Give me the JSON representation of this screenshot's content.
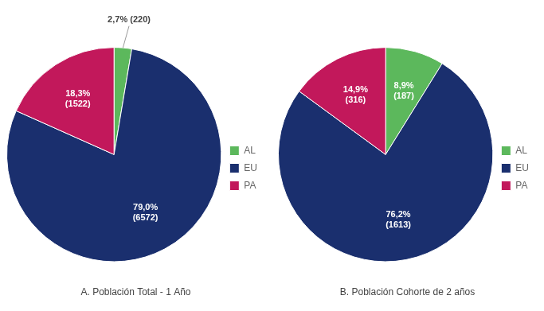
{
  "chart_data": [
    {
      "type": "pie",
      "title": "A. Población Total - 1 Año",
      "categories": [
        "AL",
        "EU",
        "PA"
      ],
      "values": [
        220,
        6572,
        1522
      ],
      "value_labels": [
        "2,7% (220)",
        "79,0%\n(6572)",
        "18,3%\n(1522)"
      ],
      "colors": [
        "#5cb85c",
        "#1a2f6e",
        "#c2185b"
      ],
      "data_labels": true,
      "legend": "right"
    },
    {
      "type": "pie",
      "title": "B. Población Cohorte de 2 años",
      "categories": [
        "AL",
        "EU",
        "PA"
      ],
      "values": [
        187,
        1613,
        316
      ],
      "value_labels": [
        "8,9%\n(187)",
        "76,2%\n(1613)",
        "14,9%\n(316)"
      ],
      "colors": [
        "#5cb85c",
        "#1a2f6e",
        "#c2185b"
      ],
      "data_labels": true,
      "legend": "right"
    }
  ]
}
